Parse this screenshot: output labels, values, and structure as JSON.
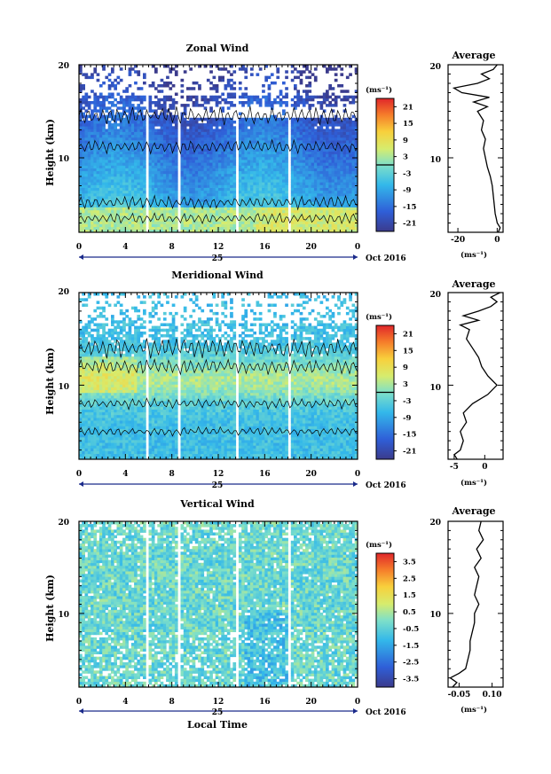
{
  "chart_data": [
    {
      "type": "heatmap",
      "title": "Zonal Wind",
      "ylabel": "Height (km)",
      "ylim": [
        2,
        20
      ],
      "yticks": [
        "20",
        "10"
      ],
      "xticks": [
        "0",
        "4",
        "8",
        "12",
        "16",
        "20",
        "0"
      ],
      "date_day": "25",
      "date_month": "Oct 2016",
      "colorbar": {
        "unit": "(ms⁻¹)",
        "ticks": [
          "21",
          "15",
          "9",
          "3",
          "-3",
          "-9",
          "-15",
          "-21"
        ],
        "range": [
          -24,
          24
        ]
      },
      "average": {
        "title": "Average",
        "xticks": [
          "-20",
          "0"
        ],
        "xlim": [
          -25,
          3
        ],
        "xlabel": "(ms⁻¹)",
        "profile": [
          [
            2,
            0.5
          ],
          [
            2.5,
            1.5
          ],
          [
            3,
            0
          ],
          [
            3.5,
            -0.5
          ],
          [
            4,
            -1
          ],
          [
            5,
            -1.5
          ],
          [
            6,
            -2
          ],
          [
            7,
            -2.5
          ],
          [
            8,
            -3.5
          ],
          [
            9,
            -5
          ],
          [
            10,
            -6
          ],
          [
            11,
            -7
          ],
          [
            12,
            -6
          ],
          [
            13,
            -8
          ],
          [
            14,
            -7
          ],
          [
            15,
            -10
          ],
          [
            15.5,
            -5
          ],
          [
            16,
            -12
          ],
          [
            16.5,
            -4
          ],
          [
            17,
            -18
          ],
          [
            17.5,
            -22
          ],
          [
            18,
            -10
          ],
          [
            18.5,
            -4
          ],
          [
            19,
            -8
          ],
          [
            19.5,
            -2
          ],
          [
            20,
            0
          ]
        ]
      },
      "gaps_hour": [
        5.6,
        8.4,
        13.3,
        17.8
      ]
    },
    {
      "type": "heatmap",
      "title": "Meridional Wind",
      "ylabel": "Height (km)",
      "ylim": [
        2,
        20
      ],
      "yticks": [
        "20",
        "10"
      ],
      "xticks": [
        "0",
        "4",
        "8",
        "12",
        "16",
        "20",
        "0"
      ],
      "date_day": "25",
      "date_month": "Oct 2016",
      "colorbar": {
        "unit": "(ms⁻¹)",
        "ticks": [
          "21",
          "15",
          "9",
          "3",
          "-3",
          "-9",
          "-15",
          "-21"
        ],
        "range": [
          -24,
          24
        ]
      },
      "average": {
        "title": "Average",
        "xticks": [
          "-5",
          "0"
        ],
        "xlim": [
          -6,
          3
        ],
        "xlabel": "(ms⁻¹)",
        "profile": [
          [
            2,
            -4.5
          ],
          [
            2.5,
            -5
          ],
          [
            3,
            -4
          ],
          [
            4,
            -3.5
          ],
          [
            5,
            -4
          ],
          [
            6,
            -3
          ],
          [
            7,
            -3.5
          ],
          [
            8,
            -2
          ],
          [
            9,
            0.5
          ],
          [
            10,
            2
          ],
          [
            11,
            0.5
          ],
          [
            12,
            -0.5
          ],
          [
            13,
            -1
          ],
          [
            14,
            -2
          ],
          [
            15,
            -3
          ],
          [
            16,
            -2.5
          ],
          [
            16.5,
            -4
          ],
          [
            17,
            -1
          ],
          [
            17.5,
            -3.5
          ],
          [
            18,
            -1
          ],
          [
            18.5,
            1
          ],
          [
            19,
            2
          ],
          [
            19.5,
            1
          ],
          [
            20,
            2.5
          ]
        ]
      },
      "gaps_hour": [
        5.6,
        8.4,
        13.3,
        17.8
      ]
    },
    {
      "type": "heatmap",
      "title": "Vertical Wind",
      "ylabel": "Height (km)",
      "xlabel": "Local Time",
      "ylim": [
        2,
        20
      ],
      "yticks": [
        "20",
        "10"
      ],
      "xticks": [
        "0",
        "4",
        "8",
        "12",
        "16",
        "20",
        "0"
      ],
      "date_day": "25",
      "date_month": "Oct 2016",
      "colorbar": {
        "unit": "(ms⁻¹)",
        "ticks": [
          "3.5",
          "2.5",
          "1.5",
          "0.5",
          "-0.5",
          "-1.5",
          "-2.5",
          "-3.5"
        ],
        "range": [
          -4,
          4
        ]
      },
      "average": {
        "title": "Average",
        "xticks": [
          "-0.05",
          "0.10"
        ],
        "xlim": [
          -0.1,
          0.15
        ],
        "xlabel": "(ms⁻¹)",
        "profile": [
          [
            2,
            -0.08
          ],
          [
            2.5,
            -0.06
          ],
          [
            3,
            -0.09
          ],
          [
            3.5,
            -0.05
          ],
          [
            4,
            -0.02
          ],
          [
            5,
            -0.01
          ],
          [
            6,
            0.0
          ],
          [
            7,
            0.0
          ],
          [
            8,
            0.01
          ],
          [
            9,
            0.02
          ],
          [
            10,
            0.02
          ],
          [
            11,
            0.04
          ],
          [
            12,
            0.02
          ],
          [
            13,
            0.03
          ],
          [
            14,
            0.04
          ],
          [
            15,
            0.02
          ],
          [
            16,
            0.05
          ],
          [
            17,
            0.03
          ],
          [
            18,
            0.06
          ],
          [
            19,
            0.04
          ],
          [
            20,
            0.05
          ]
        ]
      },
      "gaps_hour": [
        5.6,
        8.4,
        13.3,
        17.8
      ]
    }
  ]
}
